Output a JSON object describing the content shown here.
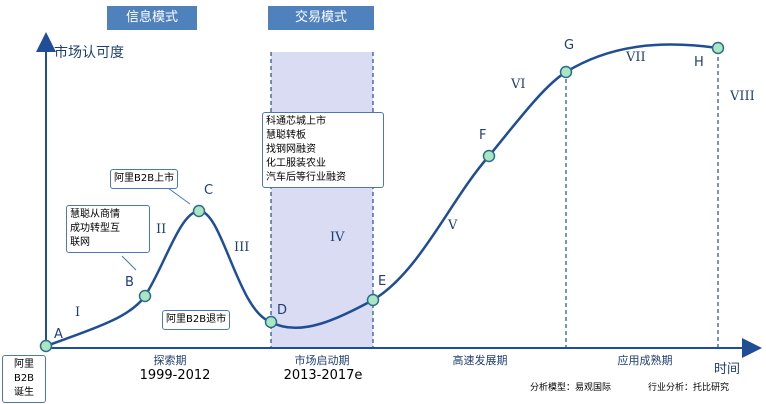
{
  "colors": {
    "curve": "#1f4e96",
    "axis": "#1f4e96",
    "band": "#d9dcf3",
    "point_fill": "#a9e6c4",
    "point_stroke": "#2e6b8a",
    "tag_bg": "#4f81bd"
  },
  "mode_tags": {
    "info": "信息模式",
    "trade": "交易模式"
  },
  "axes": {
    "y_label": "市场认可度",
    "x_label": "时间"
  },
  "points": {
    "A": "A",
    "B": "B",
    "C": "C",
    "D": "D",
    "E": "E",
    "F": "F",
    "G": "G",
    "H": "H"
  },
  "stages": {
    "I": "I",
    "II": "II",
    "III": "III",
    "IV": "IV",
    "V": "V",
    "VI": "VI",
    "VII": "VII",
    "VIII": "VIII"
  },
  "periods": {
    "explore": "探索期",
    "launch": "市场启动期",
    "growth": "高速发展期",
    "mature": "应用成熟期"
  },
  "years": {
    "explore": "1999-2012",
    "launch": "2013-2017e"
  },
  "notes": {
    "birth": [
      "阿里",
      "B2B",
      "诞生"
    ],
    "listed": "阿里B2B上市",
    "huicong": [
      "慧聪从商情",
      "成功转型互",
      "联网"
    ],
    "delisted": "阿里B2B退市",
    "launch_events": [
      "科通芯城上市",
      "慧聪转板",
      "找钢网融资",
      "化工服装农业",
      "汽车后等行业融资"
    ]
  },
  "credits": {
    "model": "分析模型：易观国际",
    "industry": "行业分析：托比研究"
  }
}
